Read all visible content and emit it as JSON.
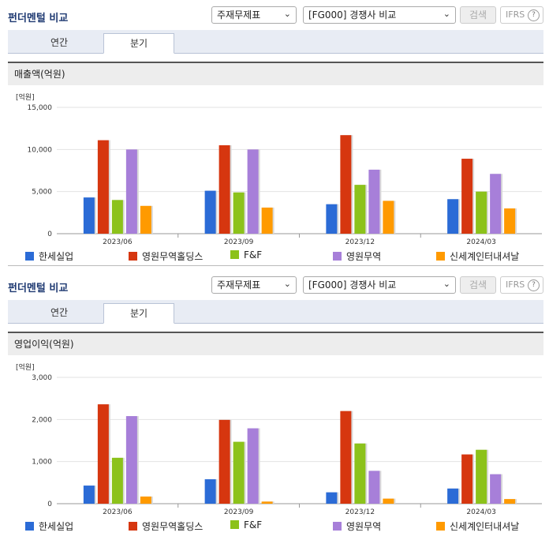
{
  "sections": [
    {
      "title": "펀더멘털 비교",
      "select1": "주재무제표",
      "select2": "[FG000] 경쟁사 비교",
      "search_label": "검색",
      "ifrs_label": "IFRS",
      "help_icon": "?",
      "tabs": [
        "연간",
        "분기"
      ],
      "active_tab": "분기",
      "chart_heading": "매출액(억원)"
    },
    {
      "title": "펀더멘털 비교",
      "select1": "주재무제표",
      "select2": "[FG000] 경쟁사 비교",
      "search_label": "검색",
      "ifrs_label": "IFRS",
      "help_icon": "?",
      "tabs": [
        "연간",
        "분기"
      ],
      "active_tab": "분기",
      "chart_heading": "영업이익(억원)"
    }
  ],
  "legend": [
    {
      "name": "한세실업",
      "color": "#2b6bd6"
    },
    {
      "name": "영원무역홀딩스",
      "color": "#d6360f"
    },
    {
      "name": "F&F",
      "color": "#8cc21b"
    },
    {
      "name": "영원무역",
      "color": "#a77fd9"
    },
    {
      "name": "신세계인터내셔날",
      "color": "#ff9a00"
    }
  ],
  "chart_data": [
    {
      "type": "bar",
      "unit_label": "[억원]",
      "categories": [
        "2023/06",
        "2023/09",
        "2023/12",
        "2024/03"
      ],
      "ylim": [
        0,
        15000
      ],
      "yticks": [
        "0",
        "5,000",
        "10,000",
        "15,000"
      ],
      "ytick_values": [
        0,
        5000,
        10000,
        15000
      ],
      "series": [
        {
          "name": "한세실업",
          "values": [
            4300,
            5100,
            3500,
            4100
          ]
        },
        {
          "name": "영원무역홀딩스",
          "values": [
            11100,
            10500,
            11700,
            8900
          ]
        },
        {
          "name": "F&F",
          "values": [
            4000,
            4900,
            5800,
            5000
          ]
        },
        {
          "name": "영원무역",
          "values": [
            10000,
            10000,
            7600,
            7100
          ]
        },
        {
          "name": "신세계인터내셔날",
          "values": [
            3300,
            3100,
            3900,
            3000
          ]
        }
      ]
    },
    {
      "type": "bar",
      "unit_label": "[억원]",
      "categories": [
        "2023/06",
        "2023/09",
        "2023/12",
        "2024/03"
      ],
      "ylim": [
        0,
        3000
      ],
      "yticks": [
        "0",
        "1,000",
        "2,000",
        "3,000"
      ],
      "ytick_values": [
        0,
        1000,
        2000,
        3000
      ],
      "series": [
        {
          "name": "한세실업",
          "values": [
            430,
            580,
            270,
            360
          ]
        },
        {
          "name": "영원무역홀딩스",
          "values": [
            2360,
            1990,
            2200,
            1170
          ]
        },
        {
          "name": "F&F",
          "values": [
            1090,
            1470,
            1430,
            1280
          ]
        },
        {
          "name": "영원무역",
          "values": [
            2080,
            1790,
            780,
            700
          ]
        },
        {
          "name": "신세계인터내셔날",
          "values": [
            170,
            50,
            120,
            110
          ]
        }
      ]
    }
  ]
}
